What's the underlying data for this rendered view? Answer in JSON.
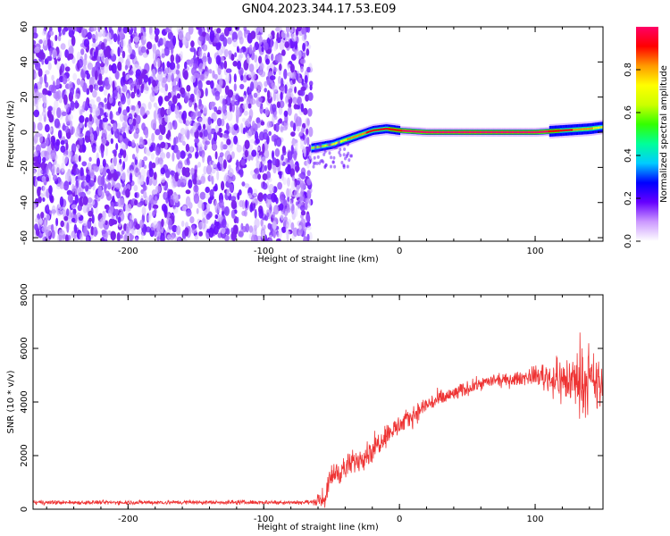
{
  "title": "GN04.2023.344.17.53.E09",
  "chart_data": [
    {
      "type": "heatmap",
      "xlabel": "Height of straight line (km)",
      "ylabel": "Frequency (Hz)",
      "xlim": [
        -270,
        150
      ],
      "ylim": [
        -62,
        60
      ],
      "xticks": [
        -200,
        -100,
        0,
        100
      ],
      "yticks": [
        60,
        40,
        20,
        0,
        -20,
        -40,
        -60
      ],
      "colorbar": {
        "label": "Normalized spectral amplitude",
        "range": [
          0,
          1
        ],
        "ticks": [
          "0.0",
          "0.2",
          "0.4",
          "0.6",
          "0.8"
        ],
        "colors": [
          "#ffffff",
          "#cc99ff",
          "#6600ff",
          "#0000ff",
          "#00ccff",
          "#00ff99",
          "#33ff00",
          "#ccff00",
          "#ffff00",
          "#ff9900",
          "#ff0000",
          "#ff0066"
        ]
      },
      "noise_region_x": [
        -270,
        -65
      ],
      "signal_ridge": {
        "x": [
          -65,
          -50,
          -35,
          -20,
          -10,
          0,
          20,
          50,
          80,
          100,
          120,
          140,
          150
        ],
        "freq": [
          -9,
          -7,
          -3,
          1,
          2,
          1,
          0,
          0,
          0,
          0,
          1,
          2,
          3
        ],
        "peak_amplitude": [
          0.6,
          0.7,
          0.8,
          0.9,
          0.9,
          0.95,
          1.0,
          1.0,
          1.0,
          1.0,
          0.9,
          0.8,
          0.7
        ]
      }
    },
    {
      "type": "line",
      "xlabel": "Height of straight line (km)",
      "ylabel": "SNR (10 * v/v)",
      "xlim": [
        -270,
        150
      ],
      "ylim": [
        0,
        8000
      ],
      "xticks": [
        -200,
        -100,
        0,
        100
      ],
      "yticks": [
        0,
        2000,
        4000,
        6000,
        8000
      ],
      "color": "#ee3333",
      "envelope": {
        "x": [
          -270,
          -65,
          -55,
          -50,
          -40,
          -30,
          -20,
          -10,
          0,
          10,
          20,
          30,
          40,
          50,
          60,
          70,
          80,
          90,
          100,
          110,
          120,
          130,
          140,
          150
        ],
        "mean": [
          250,
          260,
          400,
          1300,
          1500,
          1900,
          2200,
          2800,
          3100,
          3500,
          3900,
          4100,
          4300,
          4500,
          4700,
          4800,
          4800,
          4900,
          5000,
          4900,
          4800,
          4800,
          4700,
          4600
        ],
        "spread": [
          120,
          120,
          500,
          700,
          700,
          700,
          700,
          650,
          600,
          550,
          500,
          500,
          450,
          400,
          350,
          350,
          350,
          400,
          500,
          900,
          1300,
          1600,
          1700,
          1600
        ]
      }
    }
  ]
}
